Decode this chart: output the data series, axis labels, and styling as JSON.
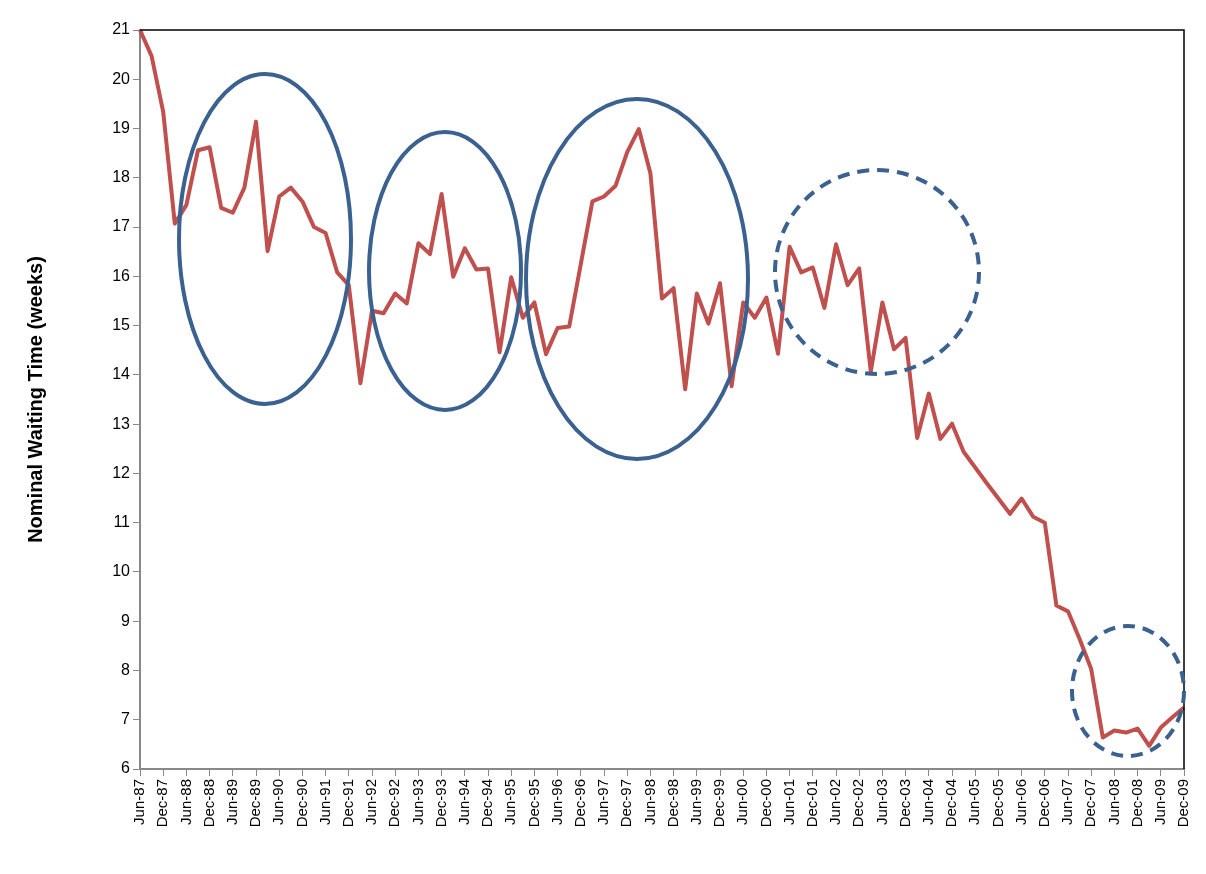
{
  "chart_data": {
    "type": "line",
    "ylabel": "Nominal Waiting Time (weeks)",
    "categories": [
      "Jun-87",
      null,
      "Dec-87",
      null,
      "Jun-88",
      null,
      "Dec-88",
      null,
      "Jun-89",
      null,
      "Dec-89",
      null,
      "Jun-90",
      null,
      "Dec-90",
      null,
      "Jun-91",
      null,
      "Dec-91",
      null,
      "Jun-92",
      null,
      "Dec-92",
      null,
      "Jun-93",
      null,
      "Dec-93",
      null,
      "Jun-94",
      null,
      "Dec-94",
      null,
      "Jun-95",
      null,
      "Dec-95",
      null,
      "Jun-96",
      null,
      "Dec-96",
      null,
      "Jun-97",
      null,
      "Dec-97",
      null,
      "Jun-98",
      null,
      "Dec-98",
      null,
      "Jun-99",
      null,
      "Dec-99",
      null,
      "Jun-00",
      null,
      "Dec-00",
      null,
      "Jun-01",
      null,
      "Dec-01",
      null,
      "Jun-02",
      null,
      "Dec-02",
      null,
      "Jun-03",
      null,
      "Dec-03",
      null,
      "Jun-04",
      null,
      "Dec-04",
      null,
      "Jun-05",
      null,
      "Dec-05",
      null,
      "Jun-06",
      null,
      "Dec-06",
      null,
      "Jun-07",
      null,
      "Dec-07",
      null,
      "Jun-08",
      null,
      "Dec-08",
      null,
      "Jun-09",
      null,
      "Dec-09"
    ],
    "series": [
      {
        "color": "#c0504d",
        "values": [
          21.0,
          20.47,
          19.34,
          17.07,
          17.45,
          18.56,
          18.62,
          17.39,
          17.29,
          17.8,
          19.14,
          16.51,
          17.62,
          17.8,
          17.52,
          17.0,
          16.88,
          16.08,
          15.82,
          13.83,
          15.3,
          15.25,
          15.65,
          15.45,
          16.67,
          16.45,
          17.67,
          15.99,
          16.57,
          16.14,
          16.16,
          14.46,
          15.98,
          15.16,
          15.47,
          14.42,
          14.95,
          14.98,
          16.25,
          17.52,
          17.62,
          17.84,
          18.52,
          18.99,
          18.09,
          15.55,
          15.76,
          13.71,
          15.65,
          15.04,
          15.86,
          13.77,
          15.47,
          15.16,
          15.57,
          14.43,
          16.6,
          16.08,
          16.18,
          15.36,
          16.65,
          15.82,
          16.16,
          14.07,
          15.47,
          14.52,
          14.75,
          12.72,
          13.62,
          12.7,
          13.01,
          12.44,
          12.12,
          11.8,
          11.49,
          11.18,
          11.49,
          11.12,
          11.0,
          9.32,
          9.2,
          8.64,
          8.03,
          6.64,
          6.78,
          6.74,
          6.82,
          6.47,
          6.84,
          7.05,
          7.25
        ]
      }
    ],
    "ylim": [
      6,
      21
    ],
    "yticks": [
      6,
      7,
      8,
      9,
      10,
      11,
      12,
      13,
      14,
      15,
      16,
      17,
      18,
      19,
      20,
      21
    ],
    "grid": false,
    "legend": false,
    "marker": "none"
  }
}
